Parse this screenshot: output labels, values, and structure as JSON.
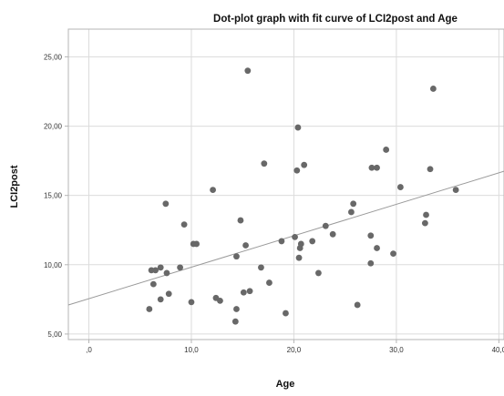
{
  "chart_data": {
    "type": "scatter",
    "title": "Dot-plot graph with fit curve of LCI2post and Age",
    "xlabel": "Age",
    "ylabel": "LCI2post",
    "xlim": [
      -2,
      40.5
    ],
    "ylim": [
      4.6,
      27.0
    ],
    "x_ticks": [
      0,
      10,
      20,
      30,
      40
    ],
    "x_tick_labels": [
      ",0",
      "10,0",
      "20,0",
      "30,0",
      "40,0"
    ],
    "y_ticks": [
      5,
      10,
      15,
      20,
      25
    ],
    "y_tick_labels": [
      "5,00",
      "10,00",
      "15,00",
      "20,00",
      "25,00"
    ],
    "grid": true,
    "legend": "none",
    "colors": {
      "points": "#686868",
      "fit_line": "#9a9a9a",
      "grid": "#dcdcdc",
      "frame": "#b5b5b5"
    },
    "fit_line": {
      "intercept": 7.55,
      "slope": 0.227
    },
    "points": [
      {
        "x": 5.9,
        "y": 6.8
      },
      {
        "x": 6.1,
        "y": 9.6
      },
      {
        "x": 6.3,
        "y": 8.6
      },
      {
        "x": 6.5,
        "y": 9.6
      },
      {
        "x": 7.0,
        "y": 7.5
      },
      {
        "x": 7.0,
        "y": 9.8
      },
      {
        "x": 7.5,
        "y": 14.4
      },
      {
        "x": 7.6,
        "y": 9.4
      },
      {
        "x": 7.8,
        "y": 7.9
      },
      {
        "x": 8.9,
        "y": 9.8
      },
      {
        "x": 9.3,
        "y": 12.9
      },
      {
        "x": 10.0,
        "y": 7.3
      },
      {
        "x": 10.2,
        "y": 11.5
      },
      {
        "x": 10.5,
        "y": 11.5
      },
      {
        "x": 12.1,
        "y": 15.4
      },
      {
        "x": 12.4,
        "y": 7.6
      },
      {
        "x": 12.8,
        "y": 7.4
      },
      {
        "x": 14.3,
        "y": 5.9
      },
      {
        "x": 14.4,
        "y": 10.6
      },
      {
        "x": 14.4,
        "y": 6.8
      },
      {
        "x": 14.8,
        "y": 13.2
      },
      {
        "x": 15.1,
        "y": 8.0
      },
      {
        "x": 15.3,
        "y": 11.4
      },
      {
        "x": 15.5,
        "y": 24.0
      },
      {
        "x": 15.7,
        "y": 8.1
      },
      {
        "x": 16.8,
        "y": 9.8
      },
      {
        "x": 17.1,
        "y": 17.3
      },
      {
        "x": 17.6,
        "y": 8.7
      },
      {
        "x": 18.8,
        "y": 11.7
      },
      {
        "x": 19.2,
        "y": 6.5
      },
      {
        "x": 20.1,
        "y": 12.0
      },
      {
        "x": 20.3,
        "y": 16.8
      },
      {
        "x": 20.4,
        "y": 19.9
      },
      {
        "x": 20.5,
        "y": 10.5
      },
      {
        "x": 20.6,
        "y": 11.2
      },
      {
        "x": 20.7,
        "y": 11.5
      },
      {
        "x": 21.0,
        "y": 17.2
      },
      {
        "x": 21.8,
        "y": 11.7
      },
      {
        "x": 22.4,
        "y": 9.4
      },
      {
        "x": 23.1,
        "y": 12.8
      },
      {
        "x": 23.8,
        "y": 12.2
      },
      {
        "x": 25.6,
        "y": 13.8
      },
      {
        "x": 25.8,
        "y": 14.4
      },
      {
        "x": 26.2,
        "y": 7.1
      },
      {
        "x": 27.5,
        "y": 12.1
      },
      {
        "x": 27.5,
        "y": 10.1
      },
      {
        "x": 27.6,
        "y": 17.0
      },
      {
        "x": 28.1,
        "y": 17.0
      },
      {
        "x": 28.1,
        "y": 11.2
      },
      {
        "x": 29.0,
        "y": 18.3
      },
      {
        "x": 29.7,
        "y": 10.8
      },
      {
        "x": 30.4,
        "y": 15.6
      },
      {
        "x": 32.8,
        "y": 13.0
      },
      {
        "x": 32.9,
        "y": 13.6
      },
      {
        "x": 33.3,
        "y": 16.9
      },
      {
        "x": 33.6,
        "y": 22.7
      },
      {
        "x": 35.8,
        "y": 15.4
      }
    ]
  }
}
